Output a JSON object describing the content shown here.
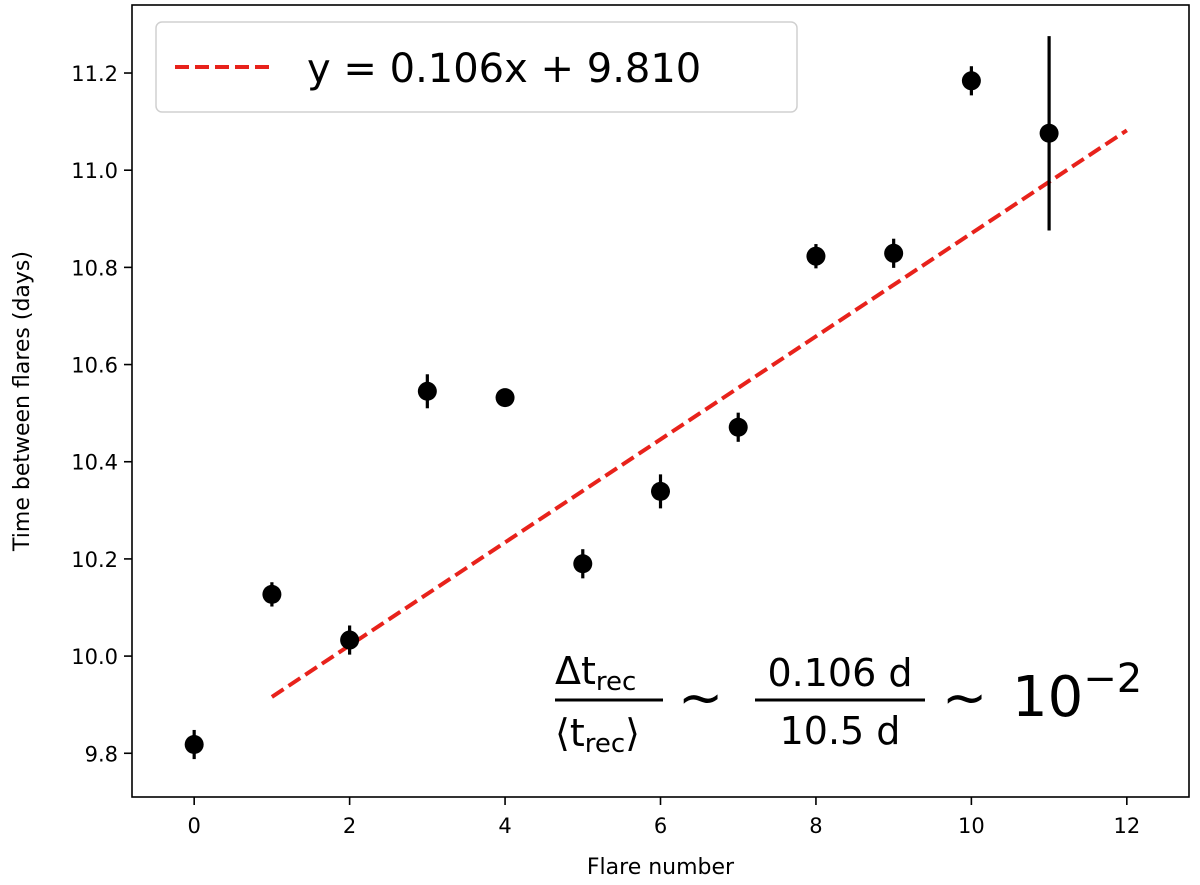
{
  "chart_data": {
    "type": "scatter",
    "xlabel": "Flare number",
    "ylabel": "Time between flares (days)",
    "xlim": [
      -0.8,
      12.8
    ],
    "ylim": [
      9.71,
      11.34
    ],
    "xticks": [
      0,
      2,
      4,
      6,
      8,
      10,
      12
    ],
    "yticks": [
      9.8,
      10.0,
      10.2,
      10.4,
      10.6,
      10.8,
      11.0,
      11.2
    ],
    "xtick_labels": [
      "0",
      "2",
      "4",
      "6",
      "8",
      "10",
      "12"
    ],
    "ytick_labels": [
      "9.8",
      "10.0",
      "10.2",
      "10.4",
      "10.6",
      "10.8",
      "11.0",
      "11.2"
    ],
    "grid": false,
    "legend_placement": "top-left",
    "series": [
      {
        "kind": "errorbar",
        "color": "#000000",
        "x": [
          0,
          1,
          2,
          3,
          4,
          5,
          6,
          7,
          8,
          9,
          10,
          11
        ],
        "y": [
          9.818,
          10.127,
          10.033,
          10.545,
          10.532,
          10.19,
          10.339,
          10.471,
          10.823,
          10.829,
          11.184,
          11.076
        ],
        "yerr": [
          0.03,
          0.025,
          0.03,
          0.035,
          0.015,
          0.03,
          0.035,
          0.03,
          0.025,
          0.03,
          0.03,
          0.2
        ]
      },
      {
        "kind": "fit-line",
        "name": "y = 0.106x + 9.810",
        "color": "#e8221b",
        "style": "dashed",
        "slope": 0.106,
        "intercept": 9.81,
        "x_range": [
          1,
          12
        ]
      }
    ],
    "annotation": {
      "lhs_num": "Δt",
      "lhs_num_sub": "rec",
      "lhs_den": "⟨t",
      "lhs_den_sub": "rec",
      "lhs_den_close": "⟩",
      "sim1": "∼",
      "mid_num": "0.106 d",
      "mid_den": "10.5 d",
      "sim2": "∼",
      "rhs_base": "10",
      "rhs_exp": "−2"
    }
  }
}
